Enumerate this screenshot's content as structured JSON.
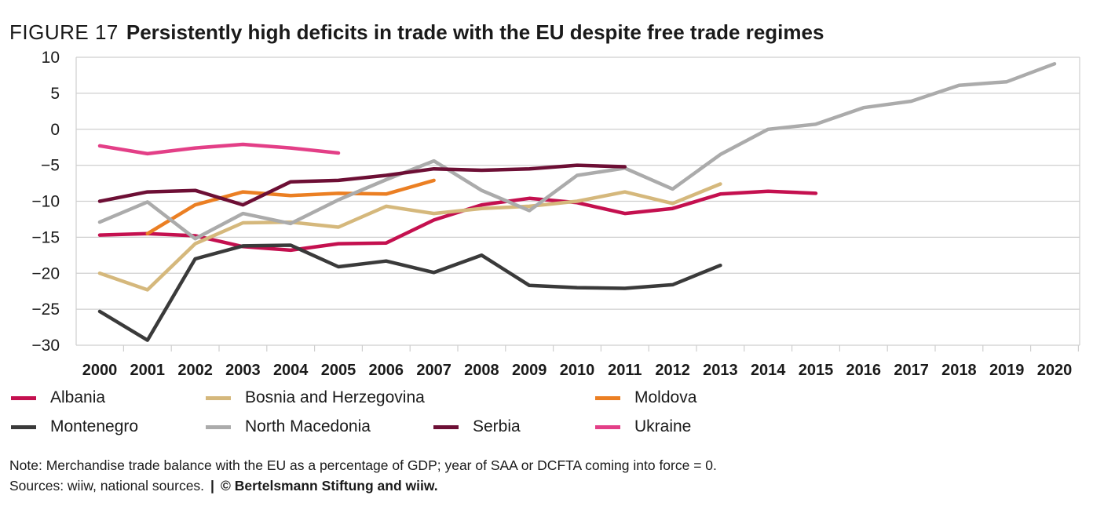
{
  "figure": {
    "label": "FIGURE 17",
    "title": "Persistently high deficits in trade with the EU despite free trade regimes"
  },
  "chart_data": {
    "type": "line",
    "x": [
      2000,
      2001,
      2002,
      2003,
      2004,
      2005,
      2006,
      2007,
      2008,
      2009,
      2010,
      2011,
      2012,
      2013,
      2014,
      2015,
      2016,
      2017,
      2018,
      2019,
      2020
    ],
    "xticklabels": [
      "2000",
      "2001",
      "2002",
      "2003",
      "2004",
      "2005",
      "2006",
      "2007",
      "2008",
      "2009",
      "2010",
      "2011",
      "2012",
      "2013",
      "2014",
      "2015",
      "2016",
      "2017",
      "2018",
      "2019",
      "2020"
    ],
    "ylim": [
      -30,
      10
    ],
    "yticks": [
      10,
      5,
      0,
      -5,
      -10,
      -15,
      -20,
      -25,
      -30
    ],
    "yticklabels": [
      "10",
      "5",
      "0",
      "−5",
      "−10",
      "−15",
      "−20",
      "−25",
      "−30"
    ],
    "grid": "horizontal",
    "legend_position": "bottom",
    "series": [
      {
        "name": "Albania",
        "color": "#c4104f",
        "values": [
          -14.7,
          -14.5,
          -14.8,
          -16.3,
          -16.8,
          -15.9,
          -15.8,
          -12.6,
          -10.5,
          -9.6,
          -10.2,
          -11.7,
          -11.0,
          -9.0,
          -8.6,
          -8.9,
          null,
          null,
          null,
          null,
          null
        ]
      },
      {
        "name": "Bosnia and Herzegovina",
        "color": "#d5b87c",
        "values": [
          -20.0,
          -22.3,
          -15.9,
          -13.0,
          -12.9,
          -13.6,
          -10.7,
          -11.7,
          -11.0,
          -10.7,
          -10.0,
          -8.7,
          -10.3,
          -7.6,
          null,
          null,
          null,
          null,
          null,
          null,
          null
        ]
      },
      {
        "name": "Moldova",
        "color": "#eb7f23",
        "values": [
          null,
          -14.5,
          -10.5,
          -8.7,
          -9.2,
          -8.9,
          -9.0,
          -7.1,
          null,
          null,
          null,
          null,
          null,
          null,
          null,
          null,
          null,
          null,
          null,
          null,
          null
        ]
      },
      {
        "name": "Montenegro",
        "color": "#3a3a3a",
        "values": [
          -25.3,
          -29.3,
          -18.0,
          -16.2,
          -16.1,
          -19.1,
          -18.3,
          -19.9,
          -17.5,
          -21.7,
          -22.0,
          -22.1,
          -21.6,
          -18.9,
          null,
          null,
          null,
          null,
          null,
          null,
          null
        ]
      },
      {
        "name": "North Macedonia",
        "color": "#ababab",
        "values": [
          -12.9,
          -10.1,
          -15.2,
          -11.7,
          -13.1,
          -9.8,
          -7.0,
          -4.4,
          -8.5,
          -11.3,
          -6.4,
          -5.4,
          -8.3,
          -3.5,
          0.0,
          0.7,
          3.0,
          3.9,
          6.1,
          6.6,
          9.1
        ]
      },
      {
        "name": "Serbia",
        "color": "#6d0f35",
        "values": [
          -10.0,
          -8.7,
          -8.5,
          -10.5,
          -7.3,
          -7.1,
          -6.4,
          -5.5,
          -5.7,
          -5.5,
          -5.0,
          -5.2,
          null,
          null,
          null,
          null,
          null,
          null,
          null,
          null,
          null
        ]
      },
      {
        "name": "Ukraine",
        "color": "#e33f87",
        "values": [
          -2.3,
          -3.4,
          -2.6,
          -2.1,
          -2.6,
          -3.3,
          null,
          null,
          null,
          null,
          null,
          null,
          null,
          null,
          null,
          null,
          null,
          null,
          null,
          null,
          null
        ]
      }
    ]
  },
  "legend": {
    "items": [
      "Albania",
      "Bosnia and Herzegovina",
      "Moldova",
      "Montenegro",
      "North Macedonia",
      "Serbia",
      "Ukraine"
    ]
  },
  "notes": {
    "line1": "Note: Merchandise trade balance with the EU as a percentage of GDP; year of SAA or DCFTA coming into force = 0.",
    "line2_text": "Sources: wiiw, national sources.",
    "separator": "|",
    "copyright": "© Bertelsmann Stiftung and wiiw."
  }
}
